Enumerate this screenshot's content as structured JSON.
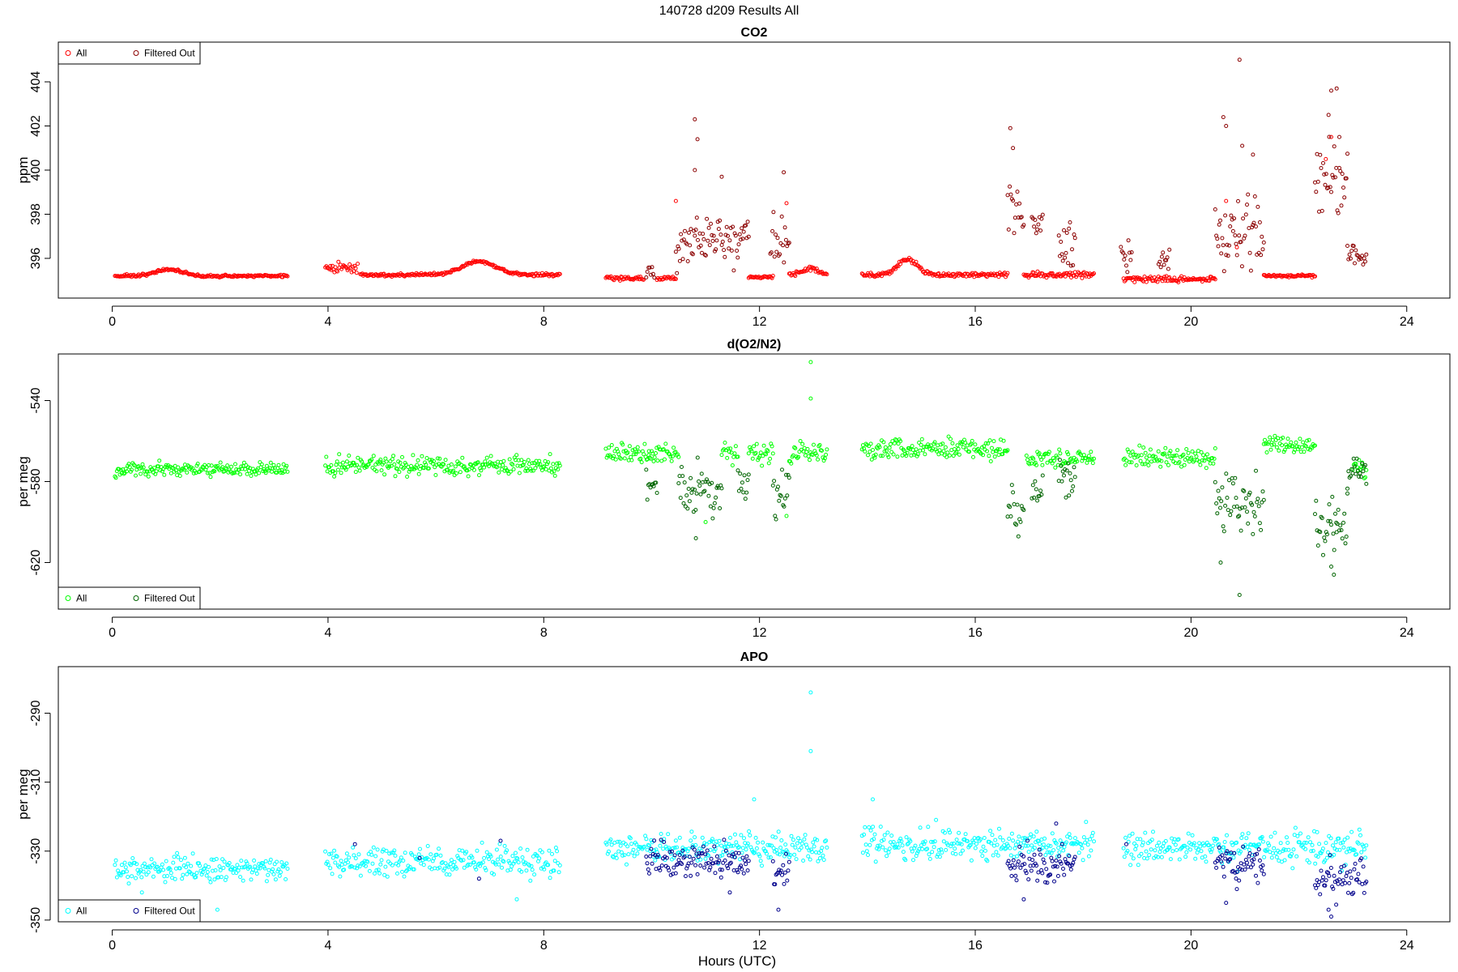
{
  "figure": {
    "title": "140728   d209   Results All",
    "xlabel": "Hours (UTC)"
  },
  "colors": {
    "co2_all": "#ff0000",
    "co2_filtered": "#8b0000",
    "o2_all": "#00ff00",
    "o2_filtered": "#006400",
    "apo_all": "#00ffff",
    "apo_filtered": "#00008b"
  },
  "chart_data": [
    {
      "type": "scatter",
      "title": "CO2",
      "xlabel": "",
      "ylabel": "ppm",
      "xlim": [
        -1,
        24.8
      ],
      "ylim": [
        394.2,
        405.8
      ],
      "xticks": [
        0,
        4,
        8,
        12,
        16,
        20,
        24
      ],
      "yticks": [
        396,
        398,
        400,
        402,
        404
      ],
      "legend": {
        "position": "top-left",
        "entries": [
          "All",
          "Filtered Out"
        ]
      },
      "series": [
        {
          "name": "All",
          "color_key": "co2_all",
          "segments": [
            {
              "x0": 0.05,
              "x1": 3.25,
              "base": 395.2,
              "noise": 0.06,
              "humps": [
                [
                  1.05,
                  0.3,
                  0.35
                ]
              ]
            },
            {
              "x0": 3.95,
              "x1": 4.55,
              "base": 395.55,
              "noise": 0.2
            },
            {
              "x0": 4.6,
              "x1": 8.3,
              "base": 395.25,
              "noise": 0.07,
              "humps": [
                [
                  6.8,
                  0.6,
                  0.45
                ]
              ]
            },
            {
              "x0": 9.15,
              "x1": 9.85,
              "base": 395.1,
              "noise": 0.08
            },
            {
              "x0": 10.1,
              "x1": 10.45,
              "base": 395.1,
              "noise": 0.1
            },
            {
              "x0": 11.8,
              "x1": 12.25,
              "base": 395.15,
              "noise": 0.05
            },
            {
              "x0": 12.55,
              "x1": 13.25,
              "base": 395.25,
              "noise": 0.1,
              "humps": [
                [
                  12.95,
                  0.3,
                  0.2
                ]
              ]
            },
            {
              "x0": 13.9,
              "x1": 16.6,
              "base": 395.25,
              "noise": 0.1,
              "humps": [
                [
                  14.75,
                  0.7,
                  0.25
                ]
              ]
            },
            {
              "x0": 16.9,
              "x1": 18.2,
              "base": 395.25,
              "noise": 0.15
            },
            {
              "x0": 18.75,
              "x1": 20.45,
              "base": 395.05,
              "noise": 0.12
            },
            {
              "x0": 21.35,
              "x1": 22.3,
              "base": 395.2,
              "noise": 0.06
            }
          ],
          "points": [
            [
              10.45,
              398.6
            ],
            [
              12.5,
              398.5
            ],
            [
              22.6,
              401.5
            ],
            [
              22.5,
              400.5
            ],
            [
              20.65,
              398.6
            ],
            [
              20.85,
              396.5
            ]
          ]
        },
        {
          "name": "Filtered Out",
          "color_key": "co2_filtered",
          "segments": [
            {
              "x0": 9.9,
              "x1": 10.05,
              "base": 395.5,
              "noise": 0.4
            },
            {
              "x0": 10.45,
              "x1": 11.8,
              "base": 396.8,
              "noise": 1.1
            },
            {
              "x0": 12.2,
              "x1": 12.55,
              "base": 396.8,
              "noise": 1.3
            },
            {
              "x0": 16.6,
              "x1": 16.9,
              "base": 398.3,
              "noise": 1.4
            },
            {
              "x0": 17.05,
              "x1": 17.25,
              "base": 397.4,
              "noise": 0.9
            },
            {
              "x0": 17.55,
              "x1": 17.85,
              "base": 396.6,
              "noise": 1.0
            },
            {
              "x0": 18.7,
              "x1": 18.9,
              "base": 396.0,
              "noise": 0.7
            },
            {
              "x0": 19.4,
              "x1": 19.6,
              "base": 396.0,
              "noise": 0.6
            },
            {
              "x0": 20.45,
              "x1": 21.35,
              "base": 397.2,
              "noise": 1.6
            },
            {
              "x0": 22.3,
              "x1": 22.9,
              "base": 399.4,
              "noise": 1.5
            },
            {
              "x0": 22.9,
              "x1": 23.25,
              "base": 396.2,
              "noise": 0.6
            }
          ],
          "points": [
            [
              10.8,
              402.3
            ],
            [
              10.85,
              401.4
            ],
            [
              10.8,
              400.0
            ],
            [
              11.3,
              399.7
            ],
            [
              12.45,
              399.9
            ],
            [
              16.65,
              401.9
            ],
            [
              16.7,
              401.0
            ],
            [
              20.6,
              402.4
            ],
            [
              20.65,
              402.0
            ],
            [
              20.9,
              405.0
            ],
            [
              20.95,
              401.1
            ],
            [
              21.15,
              400.7
            ],
            [
              22.6,
              403.6
            ],
            [
              22.7,
              403.7
            ],
            [
              22.75,
              401.5
            ],
            [
              22.55,
              402.5
            ]
          ]
        }
      ]
    },
    {
      "type": "scatter",
      "title": "d(O2/N2)",
      "xlabel": "",
      "ylabel": "per meg",
      "xlim": [
        -1,
        24.8
      ],
      "ylim": [
        -643,
        -517
      ],
      "xticks": [
        0,
        4,
        8,
        12,
        16,
        20,
        24
      ],
      "yticks": [
        -540,
        -580,
        -620
      ],
      "legend": {
        "position": "bottom-left",
        "entries": [
          "All",
          "Filtered Out"
        ]
      },
      "series": [
        {
          "name": "All",
          "color_key": "o2_all",
          "segments": [
            {
              "x0": 0.05,
              "x1": 3.25,
              "base": -574,
              "noise": 3.5
            },
            {
              "x0": 3.95,
              "x1": 8.3,
              "base": -572,
              "noise": 4.5
            },
            {
              "x0": 9.15,
              "x1": 10.5,
              "base": -566,
              "noise": 4.5
            },
            {
              "x0": 11.3,
              "x1": 11.6,
              "base": -566,
              "noise": 5
            },
            {
              "x0": 11.8,
              "x1": 12.25,
              "base": -566,
              "noise": 5
            },
            {
              "x0": 12.55,
              "x1": 13.25,
              "base": -566,
              "noise": 5
            },
            {
              "x0": 13.9,
              "x1": 16.6,
              "base": -564,
              "noise": 5
            },
            {
              "x0": 16.95,
              "x1": 18.2,
              "base": -569,
              "noise": 4
            },
            {
              "x0": 18.75,
              "x1": 20.45,
              "base": -568,
              "noise": 5
            },
            {
              "x0": 21.35,
              "x1": 22.3,
              "base": -562,
              "noise": 4
            },
            {
              "x0": 23.0,
              "x1": 23.25,
              "base": -572,
              "noise": 6
            }
          ],
          "points": [
            [
              12.95,
              -521
            ],
            [
              12.95,
              -539
            ],
            [
              11.0,
              -600
            ],
            [
              12.5,
              -597
            ],
            [
              9.95,
              -565
            ]
          ]
        },
        {
          "name": "Filtered Out",
          "color_key": "o2_filtered",
          "segments": [
            {
              "x0": 9.9,
              "x1": 10.1,
              "base": -580,
              "noise": 9
            },
            {
              "x0": 10.5,
              "x1": 11.3,
              "base": -585,
              "noise": 12
            },
            {
              "x0": 11.6,
              "x1": 11.8,
              "base": -580,
              "noise": 9
            },
            {
              "x0": 12.25,
              "x1": 12.55,
              "base": -585,
              "noise": 13
            },
            {
              "x0": 16.6,
              "x1": 16.9,
              "base": -595,
              "noise": 12
            },
            {
              "x0": 17.05,
              "x1": 17.25,
              "base": -585,
              "noise": 8
            },
            {
              "x0": 17.55,
              "x1": 17.85,
              "base": -578,
              "noise": 8
            },
            {
              "x0": 20.45,
              "x1": 21.35,
              "base": -590,
              "noise": 15
            },
            {
              "x0": 22.3,
              "x1": 22.9,
              "base": -600,
              "noise": 15
            },
            {
              "x0": 22.9,
              "x1": 23.25,
              "base": -575,
              "noise": 7
            }
          ],
          "points": [
            [
              10.82,
              -608
            ],
            [
              20.55,
              -620
            ],
            [
              20.9,
              -636
            ],
            [
              22.65,
              -626
            ],
            [
              22.6,
              -622
            ],
            [
              22.7,
              -605
            ]
          ]
        }
      ]
    },
    {
      "type": "scatter",
      "title": "APO",
      "xlabel": "Hours (UTC)",
      "ylabel": "per meg",
      "xlim": [
        -1,
        24.8
      ],
      "ylim": [
        -350.5,
        -276.5
      ],
      "xticks": [
        0,
        4,
        8,
        12,
        16,
        20,
        24
      ],
      "yticks": [
        -290,
        -310,
        -330,
        -350
      ],
      "legend": {
        "position": "bottom-left",
        "entries": [
          "All",
          "Filtered Out"
        ]
      },
      "series": [
        {
          "name": "All",
          "color_key": "apo_all",
          "segments": [
            {
              "x0": 0.05,
              "x1": 3.25,
              "base": -335,
              "noise": 3.5
            },
            {
              "x0": 3.95,
              "x1": 8.3,
              "base": -333,
              "noise": 4.2
            },
            {
              "x0": 9.15,
              "x1": 13.25,
              "base": -329,
              "noise": 4
            },
            {
              "x0": 13.9,
              "x1": 18.2,
              "base": -328,
              "noise": 4.5
            },
            {
              "x0": 18.75,
              "x1": 23.25,
              "base": -329,
              "noise": 5
            }
          ],
          "points": [
            [
              12.95,
              -284
            ],
            [
              12.95,
              -301
            ],
            [
              11.9,
              -315
            ],
            [
              14.1,
              -315
            ],
            [
              1.95,
              -347
            ],
            [
              7.5,
              -344
            ],
            [
              0.55,
              -342
            ]
          ]
        },
        {
          "name": "Filtered Out",
          "color_key": "apo_filtered",
          "segments": [
            {
              "x0": 9.9,
              "x1": 11.8,
              "base": -333,
              "noise": 5
            },
            {
              "x0": 12.25,
              "x1": 12.55,
              "base": -336,
              "noise": 5
            },
            {
              "x0": 16.6,
              "x1": 17.85,
              "base": -334,
              "noise": 5
            },
            {
              "x0": 20.45,
              "x1": 21.35,
              "base": -334,
              "noise": 5
            },
            {
              "x0": 22.3,
              "x1": 23.25,
              "base": -338,
              "noise": 5
            }
          ],
          "points": [
            [
              4.5,
              -328
            ],
            [
              5.7,
              -332
            ],
            [
              6.8,
              -338
            ],
            [
              7.2,
              -327
            ],
            [
              12.35,
              -347
            ],
            [
              16.9,
              -344
            ],
            [
              17.5,
              -322
            ],
            [
              20.65,
              -345
            ],
            [
              20.85,
              -341
            ],
            [
              22.55,
              -347
            ],
            [
              22.6,
              -349
            ],
            [
              18.8,
              -328
            ],
            [
              11.45,
              -342
            ]
          ]
        }
      ]
    }
  ]
}
